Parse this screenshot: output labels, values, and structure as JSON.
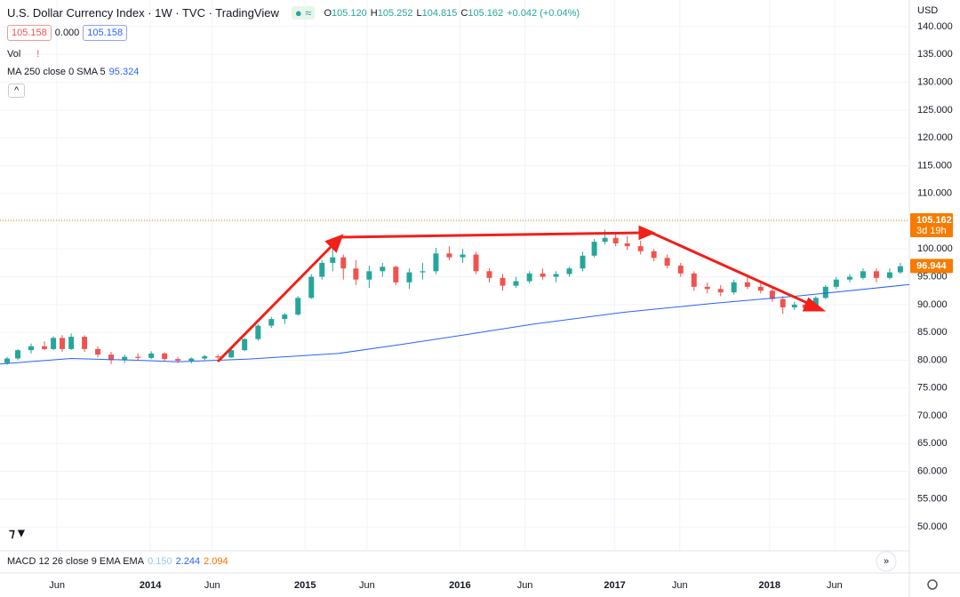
{
  "header": {
    "ohlc": [
      {
        "k": "O",
        "v": "105.120"
      },
      {
        "k": "H",
        "v": "105.252"
      },
      {
        "k": "L",
        "v": "104.815"
      },
      {
        "k": "C",
        "v": "105.162"
      },
      {
        "k": "",
        "v": "+0.042 (+0.04%)"
      }
    ],
    "bid": "105.158",
    "spread": "0.000",
    "ask": "105.158",
    "vol": "Vol",
    "macd": {
      "name": "MACD 12 26 close 9 EMA EMA",
      "values": [
        "0.150",
        "2.244",
        "2.094"
      ]
    }
  },
  "axis_currency": "USD",
  "chart_data": {
    "type": "candlestick",
    "title": "U.S. Dollar Currency Index · 1W · TVC · TradingView",
    "up_color": "#26a69a",
    "down_color": "#ef5350",
    "candles": {
      "x": [
        2013.075,
        2013.144,
        2013.23,
        2013.316,
        2013.374,
        2013.431,
        2013.489,
        2013.575,
        2013.661,
        2013.747,
        2013.834,
        2013.92,
        2014.006,
        2014.092,
        2014.178,
        2014.265,
        2014.351,
        2014.437,
        2014.523,
        2014.609,
        2014.696,
        2014.782,
        2014.868,
        2014.954,
        2015.04,
        2015.109,
        2015.178,
        2015.247,
        2015.328,
        2015.414,
        2015.5,
        2015.586,
        2015.673,
        2015.759,
        2015.845,
        2015.931,
        2016.018,
        2016.104,
        2016.19,
        2016.276,
        2016.362,
        2016.449,
        2016.535,
        2016.621,
        2016.707,
        2016.793,
        2016.868,
        2016.937,
        2017.006,
        2017.081,
        2017.167,
        2017.253,
        2017.339,
        2017.426,
        2017.512,
        2017.598,
        2017.684,
        2017.77,
        2017.857,
        2017.943,
        2018.018,
        2018.086,
        2018.161,
        2018.23,
        2018.299,
        2018.362,
        2018.431,
        2018.518,
        2018.604,
        2018.69,
        2018.776,
        2018.845
      ],
      "open": [
        79.5,
        80.3,
        81.8,
        82.5,
        82.0,
        84.0,
        82.0,
        84.2,
        82.0,
        81.0,
        80.0,
        80.6,
        80.4,
        81.2,
        80.2,
        79.9,
        80.3,
        80.7,
        80.5,
        81.8,
        83.8,
        86.2,
        87.4,
        88.2,
        91.2,
        95.0,
        97.5,
        98.5,
        96.5,
        94.5,
        96.0,
        96.8,
        94.0,
        95.8,
        96.0,
        99.2,
        98.5,
        99.0,
        96.0,
        94.8,
        93.4,
        94.2,
        95.6,
        95.0,
        95.5,
        96.5,
        98.8,
        101.3,
        102.0,
        101.0,
        100.5,
        99.6,
        98.4,
        97.0,
        95.6,
        93.2,
        92.8,
        92.2,
        94.0,
        93.2,
        92.5,
        91.0,
        89.5,
        90.0,
        89.4,
        91.2,
        93.2,
        94.5,
        94.8,
        96.0,
        94.8,
        95.8
      ],
      "high": [
        80.6,
        82.0,
        83.0,
        83.4,
        84.3,
        84.5,
        84.8,
        84.5,
        82.5,
        81.5,
        81.0,
        81.2,
        81.6,
        81.4,
        80.6,
        80.5,
        81.0,
        81.0,
        82.0,
        84.0,
        86.5,
        87.8,
        88.5,
        91.5,
        95.5,
        98.0,
        100.4,
        99.0,
        98.0,
        97.0,
        97.5,
        97.0,
        96.5,
        97.5,
        100.2,
        100.5,
        100.0,
        99.5,
        96.5,
        95.5,
        95.0,
        96.0,
        96.5,
        96.0,
        96.8,
        99.5,
        101.8,
        103.5,
        103.0,
        102.3,
        101.5,
        100.0,
        99.0,
        97.5,
        96.0,
        94.0,
        93.5,
        94.5,
        95.0,
        94.0,
        93.0,
        91.5,
        90.5,
        90.5,
        91.5,
        93.5,
        95.0,
        95.5,
        96.5,
        96.5,
        96.5,
        97.5
      ],
      "low": [
        79.2,
        80.0,
        81.2,
        81.8,
        81.8,
        81.5,
        81.8,
        81.5,
        80.5,
        79.3,
        79.5,
        80.0,
        80.2,
        79.8,
        79.5,
        79.4,
        80.0,
        80.2,
        80.4,
        81.6,
        83.5,
        85.8,
        86.5,
        88.0,
        91.0,
        94.5,
        96.0,
        94.5,
        93.5,
        93.0,
        95.0,
        93.5,
        92.8,
        94.5,
        95.5,
        98.0,
        97.5,
        95.5,
        94.0,
        92.5,
        93.0,
        93.8,
        94.5,
        94.0,
        95.0,
        96.0,
        98.5,
        100.8,
        100.5,
        99.8,
        99.0,
        97.8,
        96.5,
        95.0,
        92.5,
        92.0,
        91.5,
        91.8,
        92.8,
        92.0,
        90.5,
        88.3,
        89.0,
        88.8,
        89.2,
        91.0,
        92.8,
        94.0,
        94.5,
        94.0,
        94.5,
        95.5
      ],
      "close": [
        80.3,
        81.8,
        82.5,
        82.0,
        84.0,
        82.0,
        84.2,
        82.0,
        81.0,
        80.0,
        80.6,
        80.4,
        81.2,
        80.2,
        79.9,
        80.3,
        80.7,
        80.5,
        81.8,
        83.8,
        86.2,
        87.4,
        88.2,
        91.2,
        95.0,
        97.5,
        98.5,
        96.5,
        94.5,
        96.0,
        96.8,
        94.0,
        95.8,
        96.0,
        99.2,
        98.5,
        99.0,
        96.0,
        94.8,
        93.4,
        94.2,
        95.6,
        95.0,
        95.5,
        96.5,
        98.8,
        101.3,
        102.0,
        101.0,
        100.5,
        99.6,
        98.4,
        97.0,
        95.6,
        93.2,
        92.8,
        92.2,
        94.0,
        93.2,
        92.5,
        91.0,
        89.5,
        90.0,
        89.4,
        91.2,
        93.2,
        94.5,
        95.0,
        96.0,
        94.8,
        95.8,
        96.9
      ]
    },
    "ma": {
      "name": "MA 250 close 0 SMA 5",
      "last": "95.324",
      "color": "#2962ff",
      "x": [
        2013.029,
        2013.489,
        2013.891,
        2014.178,
        2014.638,
        2015.213,
        2015.615,
        2016.018,
        2016.477,
        2017.052,
        2017.627,
        2018.201,
        2018.903
      ],
      "values": [
        79.3,
        80.3,
        80.0,
        79.7,
        80.2,
        81.2,
        82.8,
        84.5,
        86.5,
        88.6,
        90.2,
        91.6,
        93.6
      ]
    },
    "price_tags": [
      {
        "value": 105.162,
        "label": "105.162",
        "sub": "3d 19h",
        "color": "#f57c00"
      },
      {
        "value": 96.944,
        "label": "96.944",
        "color": "#f57c00"
      }
    ],
    "xlim": [
      2013.029,
      2018.903
    ],
    "xticks": [
      {
        "value": 2013.397,
        "label": "Jun"
      },
      2014,
      {
        "value": 2014.4,
        "label": "Jun"
      },
      2015,
      {
        "value": 2015.4,
        "label": "Jun"
      },
      2016,
      {
        "value": 2016.42,
        "label": "Jun"
      },
      2017,
      {
        "value": 2017.42,
        "label": "Jun"
      },
      2018,
      {
        "value": 2018.42,
        "label": "Jun"
      }
    ],
    "ylim": [
      45.7,
      144.8
    ],
    "yticks": [
      {
        "value": 50,
        "label": "50.000"
      },
      {
        "value": 55,
        "label": "55.000"
      },
      {
        "value": 60,
        "label": "60.000"
      },
      {
        "value": 65,
        "label": "65.000"
      },
      {
        "value": 70,
        "label": "70.000"
      },
      {
        "value": 75,
        "label": "75.000"
      },
      {
        "value": 80,
        "label": "80.000"
      },
      {
        "value": 85,
        "label": "85.000"
      },
      {
        "value": 90,
        "label": "90.000"
      },
      {
        "value": 95,
        "label": "95.000"
      },
      {
        "value": 100,
        "label": "100.000"
      },
      {
        "value": 105,
        "label": "105.000"
      },
      {
        "value": 110,
        "label": "110.000"
      },
      {
        "value": 115,
        "label": "115.000"
      },
      {
        "value": 120,
        "label": "120.000"
      },
      {
        "value": 125,
        "label": "125.000"
      },
      {
        "value": 130,
        "label": "130.000"
      },
      {
        "value": 135,
        "label": "135.000"
      },
      {
        "value": 140,
        "label": "140.000"
      }
    ]
  }
}
